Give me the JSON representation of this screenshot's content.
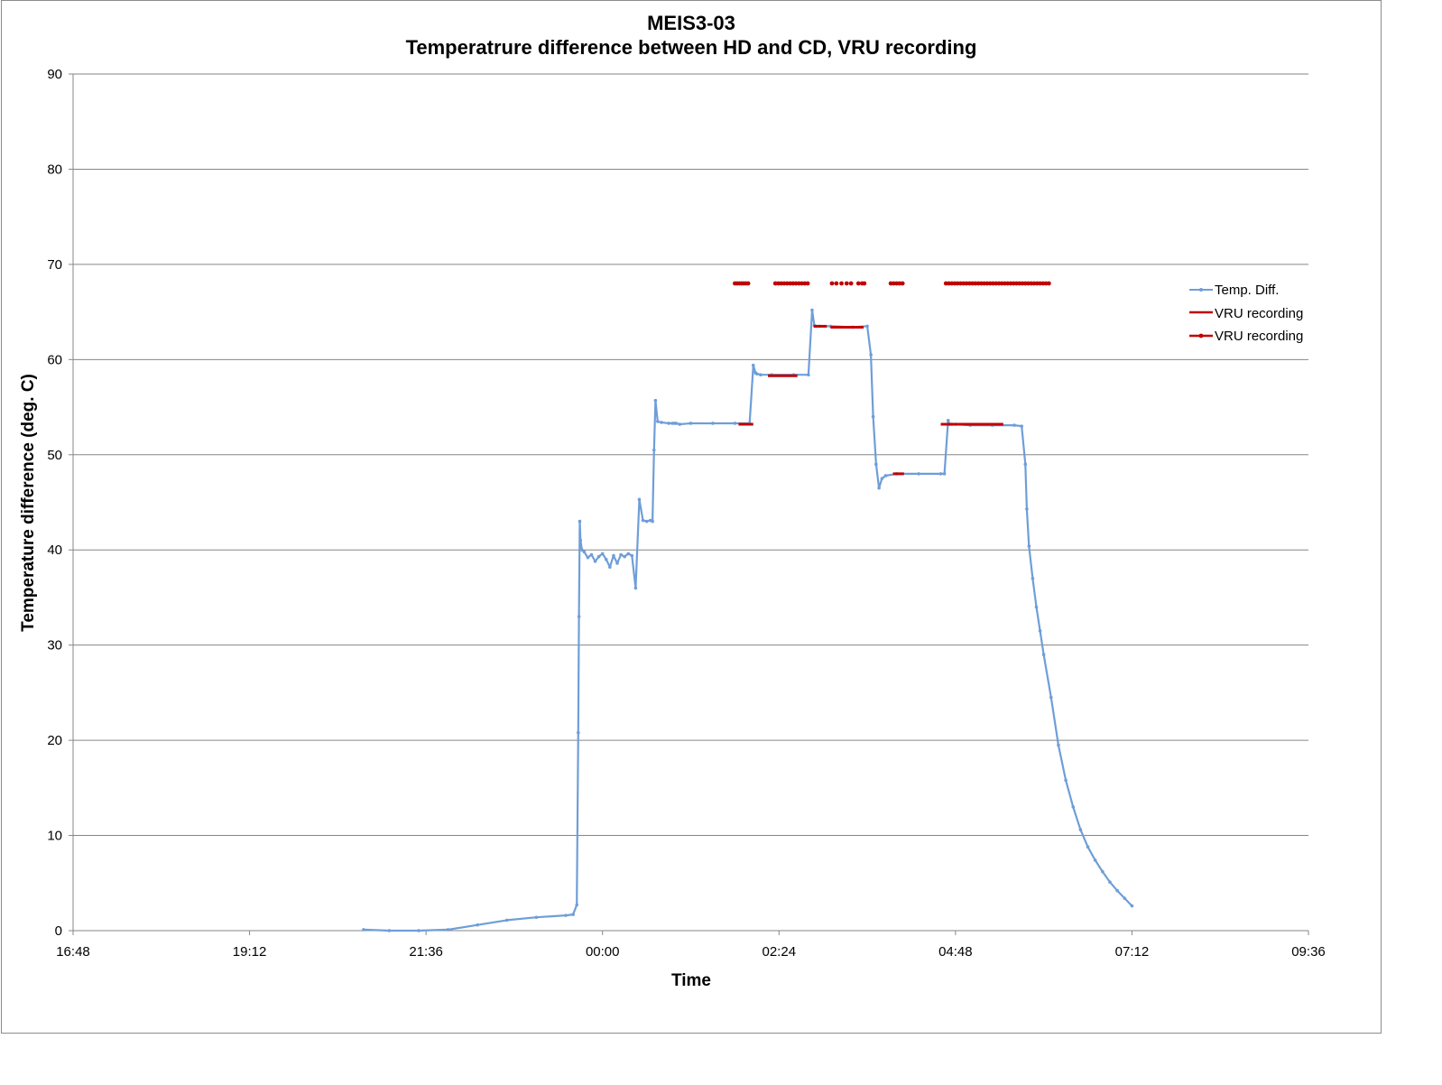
{
  "chart_data": {
    "type": "line",
    "title": "MEIS3-03",
    "subtitle": "Temperatrure difference between HD and CD, VRU recording",
    "xlabel": "Time",
    "ylabel": "Temperature difference (deg. C)",
    "x_tick_labels": [
      "16:48",
      "19:12",
      "21:36",
      "00:00",
      "02:24",
      "04:48",
      "07:12",
      "09:36"
    ],
    "y_tick_labels": [
      "0",
      "10",
      "20",
      "30",
      "40",
      "50",
      "60",
      "70",
      "80",
      "90"
    ],
    "xlim_hours": [
      -7.2,
      9.6
    ],
    "ylim": [
      0,
      90
    ],
    "grid": "horizontal",
    "legend_position": "right",
    "series": [
      {
        "name": "Temp. Diff.",
        "color": "#6f9ed8",
        "x_hours": [
          -3.25,
          -2.9,
          -2.5,
          -2.1,
          -1.7,
          -1.3,
          -0.9,
          -0.5,
          -0.4,
          -0.35,
          -0.33,
          -0.32,
          -0.31,
          -0.3,
          -0.28,
          -0.25,
          -0.2,
          -0.15,
          -0.1,
          -0.05,
          0.0,
          0.05,
          0.1,
          0.15,
          0.2,
          0.25,
          0.3,
          0.35,
          0.4,
          0.45,
          0.5,
          0.55,
          0.6,
          0.65,
          0.68,
          0.7,
          0.72,
          0.75,
          0.8,
          0.9,
          0.95,
          0.98,
          1.0,
          1.05,
          1.2,
          1.5,
          1.8,
          2.0,
          2.05,
          2.08,
          2.1,
          2.15,
          2.3,
          2.6,
          2.8,
          2.85,
          2.88,
          2.9,
          2.95,
          3.1,
          3.4,
          3.6,
          3.65,
          3.68,
          3.72,
          3.76,
          3.8,
          3.85,
          4.0,
          4.3,
          4.6,
          4.65,
          4.7,
          4.72,
          4.75,
          4.8,
          5.0,
          5.3,
          5.6,
          5.7,
          5.75,
          5.77,
          5.8,
          5.85,
          5.9,
          5.95,
          6.0,
          6.1,
          6.2,
          6.3,
          6.4,
          6.5,
          6.6,
          6.7,
          6.8,
          6.9,
          7.0,
          7.1,
          7.2
        ],
        "values": [
          0.1,
          0.0,
          0.0,
          0.1,
          0.6,
          1.1,
          1.4,
          1.6,
          1.7,
          2.7,
          20.8,
          33.0,
          43.0,
          41.0,
          40.0,
          39.8,
          39.2,
          39.5,
          38.8,
          39.3,
          39.6,
          39.0,
          38.2,
          39.4,
          38.6,
          39.5,
          39.3,
          39.6,
          39.4,
          36.0,
          45.3,
          43.1,
          43.0,
          43.1,
          43.0,
          50.5,
          55.7,
          53.5,
          53.4,
          53.3,
          53.3,
          53.3,
          53.3,
          53.2,
          53.3,
          53.3,
          53.3,
          53.3,
          59.4,
          58.6,
          58.5,
          58.4,
          58.4,
          58.4,
          58.4,
          65.2,
          63.6,
          63.5,
          63.5,
          63.5,
          63.4,
          63.5,
          60.5,
          54.0,
          49.0,
          46.5,
          47.5,
          47.8,
          48.0,
          48.0,
          48.0,
          48.0,
          53.6,
          53.2,
          53.2,
          53.2,
          53.1,
          53.1,
          53.1,
          53.0,
          49.0,
          44.3,
          40.4,
          37.0,
          34.0,
          31.5,
          29.0,
          24.5,
          19.5,
          15.8,
          13.0,
          10.6,
          8.8,
          7.4,
          6.2,
          5.1,
          4.2,
          3.4,
          2.6
        ]
      },
      {
        "name": "VRU recording",
        "color": "#c00000",
        "segments_hours": [
          [
            1.85,
            2.05
          ],
          [
            2.25,
            2.65
          ],
          [
            2.87,
            3.05
          ],
          [
            3.1,
            3.55
          ],
          [
            3.95,
            4.1
          ],
          [
            4.6,
            5.45
          ]
        ],
        "segment_values": [
          53.2,
          58.3,
          63.5,
          63.4,
          48.0,
          53.2
        ]
      },
      {
        "name": "VRU recording",
        "color": "#c00000",
        "marker_hours": [
          1.8,
          1.83,
          1.86,
          1.89,
          1.92,
          1.95,
          1.98,
          2.35,
          2.39,
          2.43,
          2.47,
          2.51,
          2.55,
          2.59,
          2.63,
          2.67,
          2.71,
          2.75,
          2.79,
          3.12,
          3.18,
          3.25,
          3.32,
          3.38,
          3.48,
          3.53,
          3.56,
          3.92,
          3.96,
          4.0,
          4.04,
          4.08,
          4.67,
          4.71,
          4.75,
          4.79,
          4.83,
          4.87,
          4.91,
          4.95,
          4.99,
          5.03,
          5.07,
          5.11,
          5.15,
          5.19,
          5.23,
          5.27,
          5.31,
          5.35,
          5.39,
          5.43,
          5.47,
          5.51,
          5.55,
          5.59,
          5.63,
          5.67,
          5.71,
          5.75,
          5.79,
          5.83,
          5.87,
          5.91,
          5.95,
          5.99,
          6.03,
          6.07
        ],
        "marker_value": 68.0
      }
    ]
  }
}
